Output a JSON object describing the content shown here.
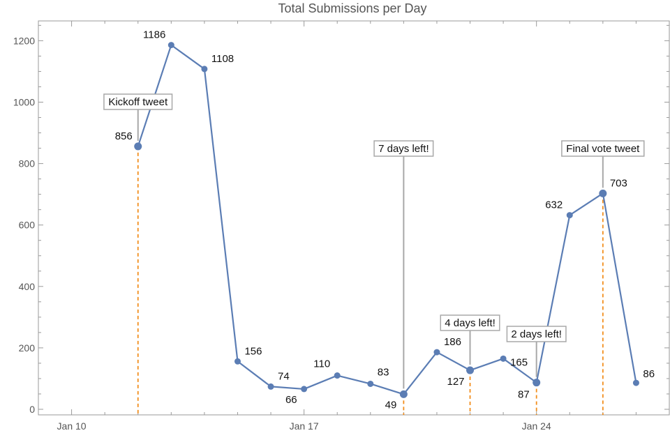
{
  "chart_data": {
    "type": "line",
    "title": "Total Submissions per Day",
    "xlabel": "",
    "ylabel": "",
    "x_axis_type": "date",
    "xlim": [
      "2016-01-09",
      "2016-01-28"
    ],
    "ylim": [
      0,
      1260
    ],
    "x_tick_labels": [
      {
        "date": "2016-01-10",
        "label": "Jan 10"
      },
      {
        "date": "2016-01-17",
        "label": "Jan 17"
      },
      {
        "date": "2016-01-24",
        "label": "Jan 24"
      }
    ],
    "y_ticks": [
      0,
      200,
      400,
      600,
      800,
      1000,
      1200
    ],
    "grid": false,
    "series": [
      {
        "x": [
          "2016-01-12",
          "2016-01-13",
          "2016-01-14",
          "2016-01-15",
          "2016-01-16",
          "2016-01-17",
          "2016-01-18",
          "2016-01-19",
          "2016-01-20",
          "2016-01-21",
          "2016-01-22",
          "2016-01-23",
          "2016-01-24",
          "2016-01-25",
          "2016-01-26",
          "2016-01-27"
        ],
        "values": [
          856,
          1186,
          1108,
          156,
          74,
          66,
          110,
          83,
          49,
          186,
          127,
          165,
          87,
          632,
          703,
          86
        ],
        "color": "#5B7DB4"
      }
    ],
    "data_labels": [
      "856",
      "1186",
      "1108",
      "156",
      "74",
      "66",
      "110",
      "83",
      "49",
      "186",
      "127",
      "165",
      "87",
      "632",
      "703",
      "86"
    ],
    "annotations": [
      {
        "date": "2016-01-12",
        "value": 856,
        "text": "Kickoff tweet"
      },
      {
        "date": "2016-01-20",
        "value": 49,
        "text": "7 days left!"
      },
      {
        "date": "2016-01-22",
        "value": 127,
        "text": "4 days left!"
      },
      {
        "date": "2016-01-24",
        "value": 87,
        "text": "2 days left!"
      },
      {
        "date": "2016-01-26",
        "value": 703,
        "text": "Final vote tweet"
      }
    ],
    "annotation_line_color": "#F28E1C"
  }
}
